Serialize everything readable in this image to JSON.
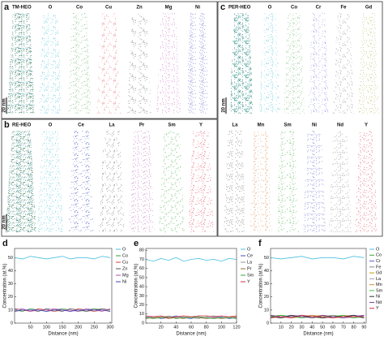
{
  "panels": [
    {
      "label": "a",
      "title": "TM-HEO",
      "maps": [
        "O",
        "Co",
        "Cu",
        "Zn",
        "Mg",
        "Ni"
      ],
      "scale_bar": "20 nm"
    },
    {
      "label": "b",
      "title": "RE-HEO",
      "maps": [
        "O",
        "Ce",
        "La",
        "Pr",
        "Sm",
        "Y"
      ],
      "scale_bar": "20 nm"
    },
    {
      "label": "c",
      "title": "PER-HEO",
      "maps": [
        "O",
        "Co",
        "Cr",
        "Fe",
        "Gd",
        "La",
        "Mn",
        "Sm",
        "Ni",
        "Nd",
        "Y"
      ],
      "scale_bar": "20 nm"
    }
  ],
  "chart_data": [
    {
      "type": "line",
      "label": "d",
      "x_label": "Distance (nm)",
      "y_label": "Concentration (at.%)",
      "x": [
        0,
        25,
        50,
        75,
        100,
        125,
        150,
        175,
        200,
        225,
        250,
        275,
        300
      ],
      "xlim": [
        0,
        305
      ],
      "xticks": [
        50,
        100,
        150,
        200,
        250,
        300
      ],
      "ylim": [
        0,
        57
      ],
      "yticks": [
        0,
        10,
        20,
        30,
        40,
        50
      ],
      "series": [
        {
          "name": "O",
          "color": "#4cc0e0",
          "values": [
            50,
            49,
            51,
            50,
            49,
            50,
            51,
            49,
            50,
            50,
            49,
            51,
            50
          ]
        },
        {
          "name": "Co",
          "color": "#3a9a3a",
          "values": [
            10,
            9,
            11,
            10,
            9,
            10,
            11,
            10,
            9,
            10,
            11,
            10,
            9
          ]
        },
        {
          "name": "Cu",
          "color": "#d04040",
          "values": [
            9,
            10,
            9,
            11,
            10,
            9,
            10,
            9,
            11,
            10,
            9,
            10,
            10
          ]
        },
        {
          "name": "Zn",
          "color": "#555555",
          "values": [
            11,
            10,
            10,
            9,
            11,
            10,
            9,
            11,
            10,
            9,
            10,
            11,
            10
          ]
        },
        {
          "name": "Mg",
          "color": "#b050b0",
          "values": [
            10,
            11,
            9,
            10,
            10,
            11,
            10,
            10,
            9,
            11,
            10,
            9,
            11
          ]
        },
        {
          "name": "Ni",
          "color": "#4040c0",
          "values": [
            9,
            10,
            10,
            10,
            9,
            10,
            10,
            9,
            10,
            10,
            10,
            10,
            9
          ]
        }
      ]
    },
    {
      "type": "line",
      "label": "e",
      "x_label": "Distance (nm)",
      "y_label": "Concentration (at.%)",
      "x": [
        0,
        10,
        20,
        30,
        40,
        50,
        60,
        70,
        80,
        90,
        100,
        110,
        120
      ],
      "xlim": [
        0,
        120
      ],
      "xticks": [
        20,
        40,
        60,
        80,
        100,
        120
      ],
      "ylim": [
        0,
        82
      ],
      "yticks": [
        0,
        10,
        20,
        30,
        40,
        50,
        60,
        70,
        80
      ],
      "series": [
        {
          "name": "O",
          "color": "#4cc0e0",
          "values": [
            70,
            68,
            71,
            69,
            72,
            68,
            70,
            71,
            69,
            70,
            68,
            71,
            70
          ]
        },
        {
          "name": "Ce",
          "color": "#4050c0",
          "values": [
            6,
            7,
            5,
            6,
            8,
            6,
            5,
            7,
            6,
            6,
            7,
            5,
            6
          ]
        },
        {
          "name": "La",
          "color": "#909090",
          "values": [
            7,
            6,
            6,
            8,
            6,
            7,
            6,
            5,
            7,
            8,
            6,
            7,
            6
          ]
        },
        {
          "name": "Pr",
          "color": "#9a6a30",
          "values": [
            5,
            6,
            7,
            5,
            6,
            5,
            7,
            6,
            5,
            6,
            5,
            6,
            7
          ]
        },
        {
          "name": "Sm",
          "color": "#40a040",
          "values": [
            6,
            5,
            6,
            7,
            5,
            6,
            6,
            7,
            6,
            5,
            6,
            6,
            5
          ]
        },
        {
          "name": "Y",
          "color": "#d03040",
          "values": [
            8,
            7,
            8,
            6,
            7,
            8,
            7,
            8,
            8,
            7,
            8,
            7,
            8
          ]
        }
      ]
    },
    {
      "type": "line",
      "label": "f",
      "x_label": "Distance (nm)",
      "y_label": "Concentration (at.%)",
      "x": [
        0,
        10,
        20,
        30,
        40,
        50,
        60,
        70,
        80,
        90
      ],
      "xlim": [
        0,
        92
      ],
      "xticks": [
        10,
        20,
        30,
        40,
        50,
        60,
        70,
        80,
        90
      ],
      "ylim": [
        0,
        57
      ],
      "yticks": [
        0,
        10,
        20,
        30,
        40,
        50
      ],
      "series": [
        {
          "name": "O",
          "color": "#4cc0e0",
          "values": [
            50,
            49,
            50,
            51,
            49,
            50,
            50,
            49,
            51,
            50
          ]
        },
        {
          "name": "Co",
          "color": "#40a040",
          "values": [
            5,
            6,
            5,
            5,
            4,
            5,
            6,
            5,
            5,
            4
          ]
        },
        {
          "name": "Cr",
          "color": "#6060d0",
          "values": [
            4,
            5,
            5,
            6,
            5,
            4,
            5,
            5,
            6,
            5
          ]
        },
        {
          "name": "Fe",
          "color": "#888888",
          "values": [
            5,
            4,
            5,
            5,
            6,
            5,
            4,
            5,
            5,
            6
          ]
        },
        {
          "name": "Gd",
          "color": "#c0a000",
          "values": [
            6,
            5,
            4,
            5,
            5,
            6,
            5,
            4,
            5,
            5
          ]
        },
        {
          "name": "La",
          "color": "#a0a0a0",
          "values": [
            5,
            5,
            6,
            4,
            5,
            5,
            6,
            5,
            4,
            5
          ]
        },
        {
          "name": "Mn",
          "color": "#d09040",
          "values": [
            4,
            5,
            5,
            5,
            6,
            4,
            5,
            6,
            5,
            5
          ]
        },
        {
          "name": "Sm",
          "color": "#40c040",
          "values": [
            5,
            6,
            5,
            4,
            5,
            5,
            5,
            6,
            4,
            5
          ]
        },
        {
          "name": "Ni",
          "color": "#303030",
          "values": [
            5,
            4,
            6,
            5,
            5,
            4,
            5,
            5,
            6,
            4
          ]
        },
        {
          "name": "Nd",
          "color": "#8040a0",
          "values": [
            6,
            5,
            5,
            5,
            4,
            6,
            5,
            4,
            5,
            6
          ]
        },
        {
          "name": "Y",
          "color": "#d03040",
          "values": [
            4,
            5,
            4,
            6,
            5,
            5,
            4,
            5,
            5,
            5
          ]
        }
      ]
    }
  ]
}
